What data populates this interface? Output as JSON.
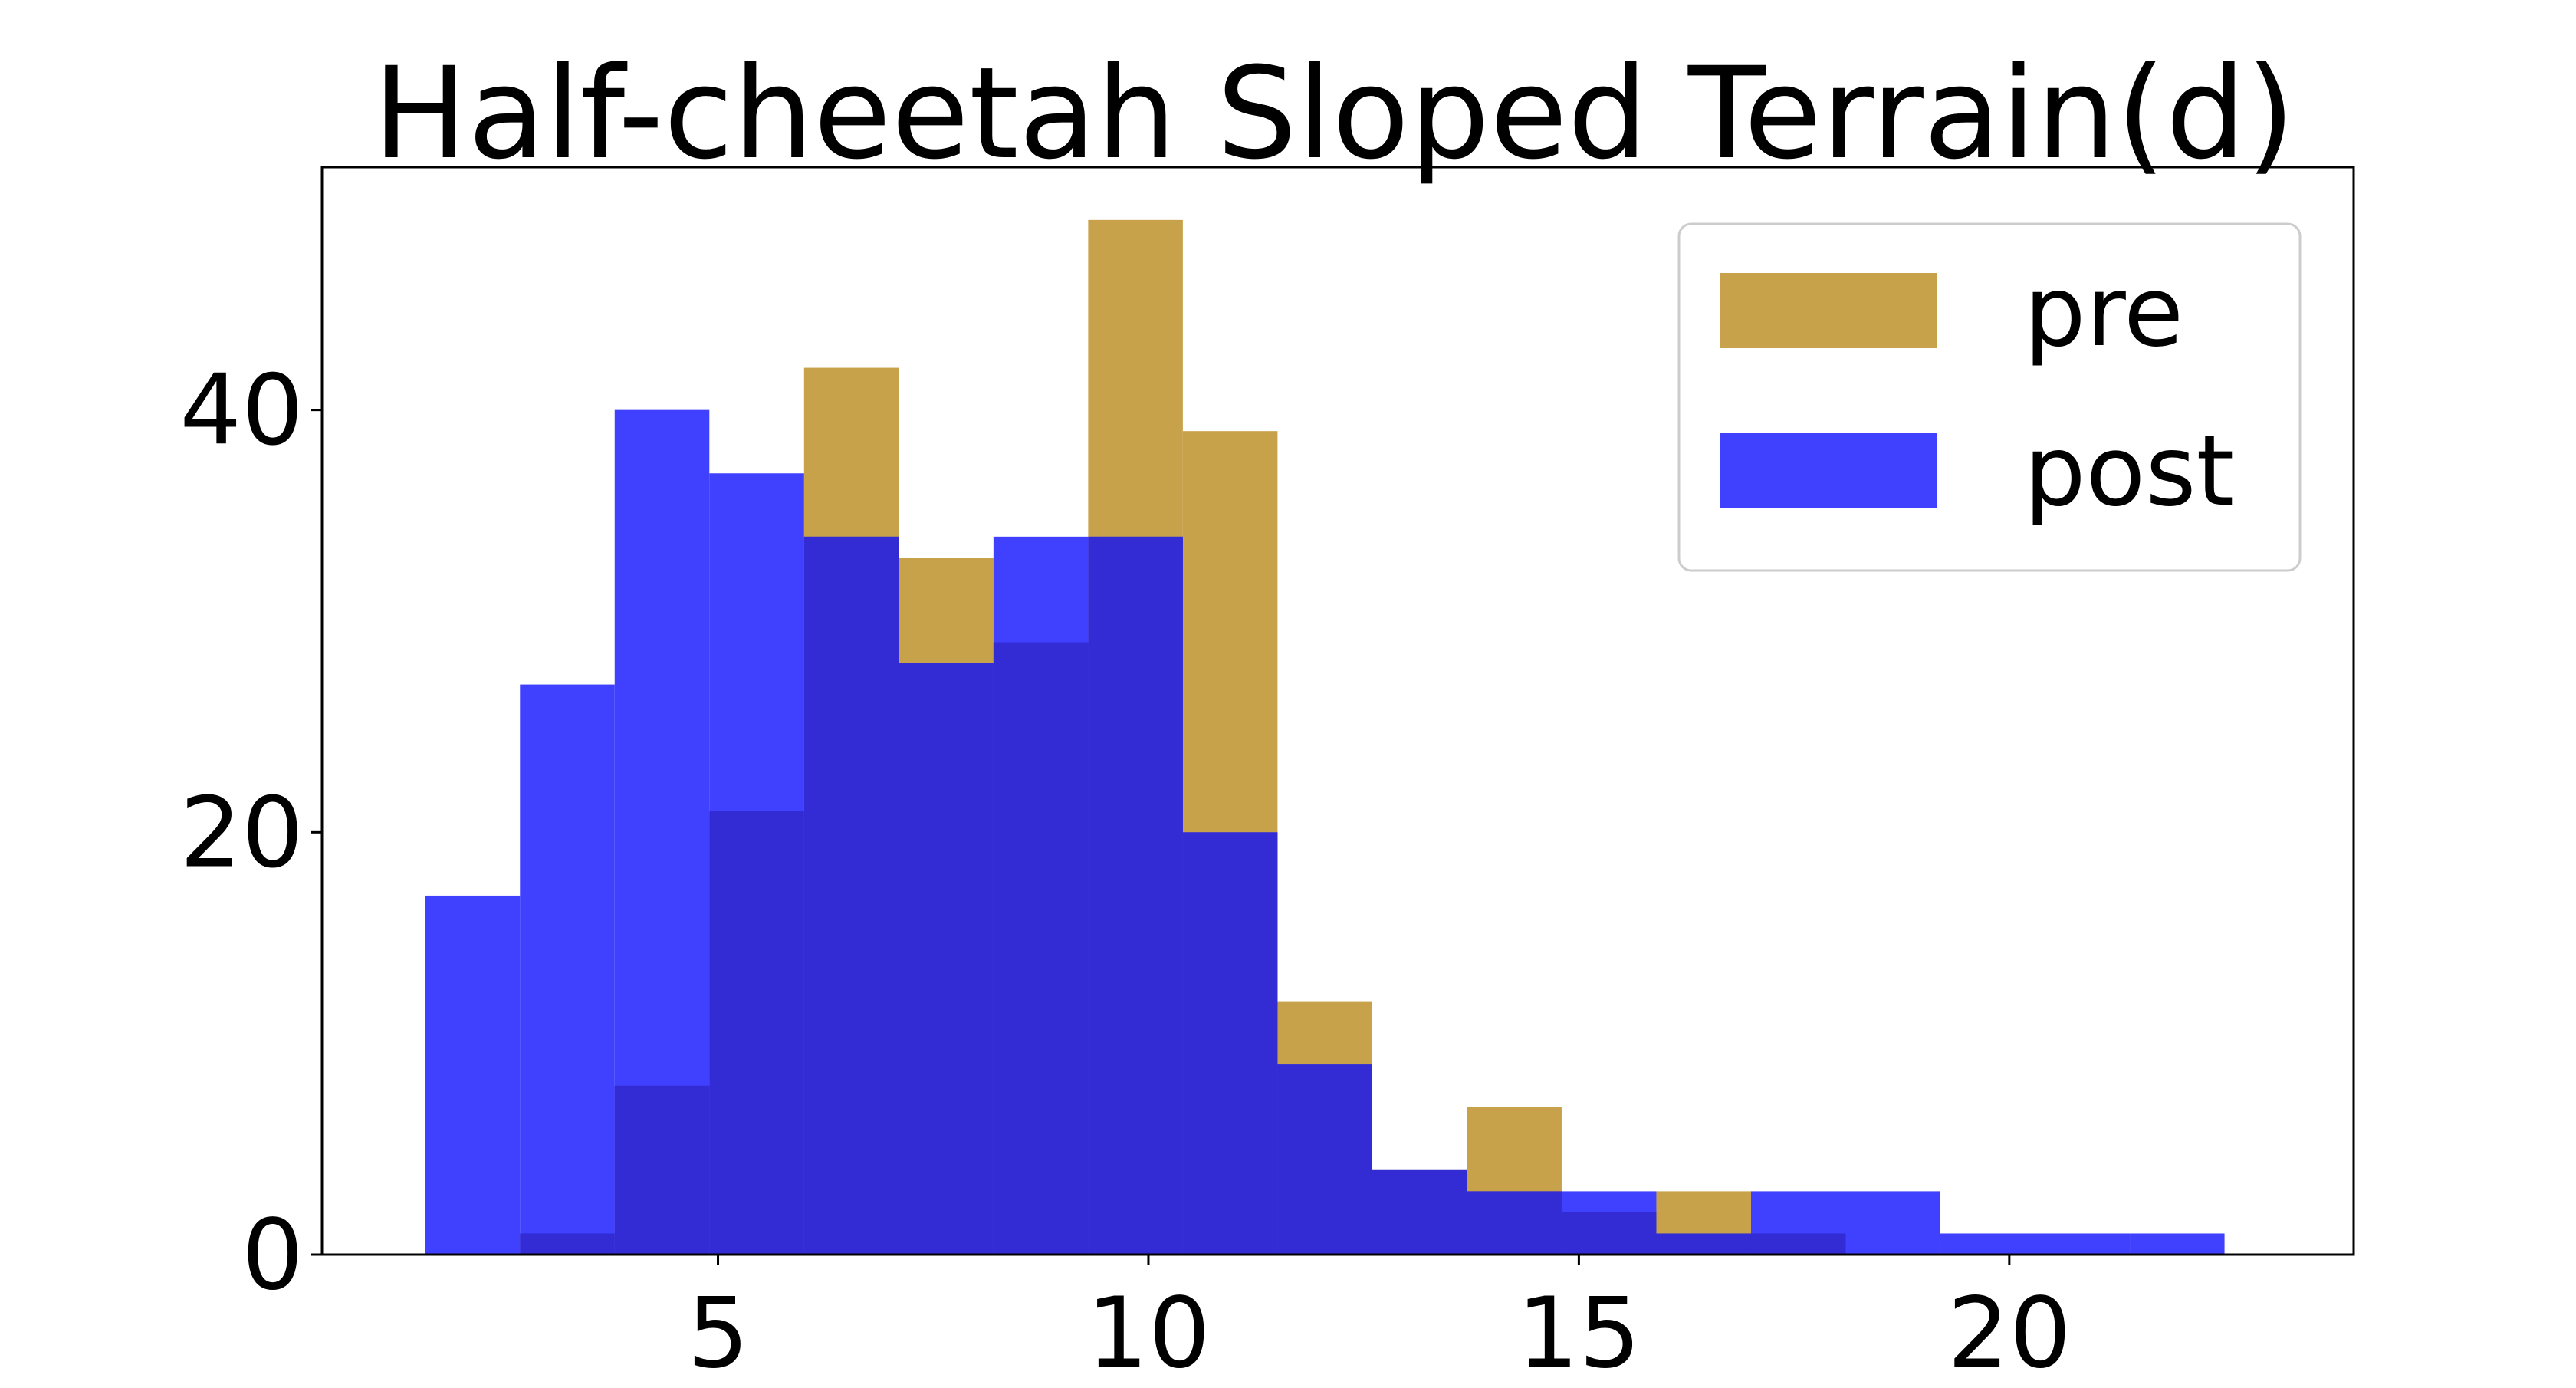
{
  "chart_data": {
    "type": "bar",
    "title": "Half-cheetah Sloped Terrain(d)",
    "xlabel": "",
    "ylabel": "",
    "xlim": [
      0.4,
      24.0
    ],
    "ylim": [
      0,
      51.5
    ],
    "x_ticks": [
      5,
      10,
      15,
      20
    ],
    "y_ticks": [
      0,
      20,
      40
    ],
    "grid": false,
    "legend_position": "top-right",
    "overlap_color": "#332bd4",
    "series": [
      {
        "name": "pre",
        "color": "#c8a24a",
        "bin_edges": [
          2.7,
          3.8,
          4.9,
          6.0,
          7.1,
          8.2,
          9.3,
          10.4,
          11.5,
          12.6,
          13.7,
          14.8,
          15.9,
          17.0,
          18.1,
          19.2
        ],
        "values": [
          1,
          8,
          21,
          42,
          33,
          29,
          49,
          39,
          12,
          4,
          7,
          2,
          3,
          1,
          0
        ]
      },
      {
        "name": "post",
        "color": "#4040ff",
        "bin_edges": [
          1.6,
          2.7,
          3.8,
          4.9,
          6.0,
          7.1,
          8.2,
          9.3,
          10.4,
          11.5,
          12.6,
          13.7,
          14.8,
          15.9,
          17.0,
          18.1,
          19.2,
          20.3,
          21.4,
          22.5
        ],
        "values": [
          17,
          27,
          40,
          37,
          34,
          28,
          34,
          34,
          20,
          9,
          4,
          3,
          3,
          1,
          3,
          3,
          1,
          1,
          1
        ]
      }
    ]
  }
}
